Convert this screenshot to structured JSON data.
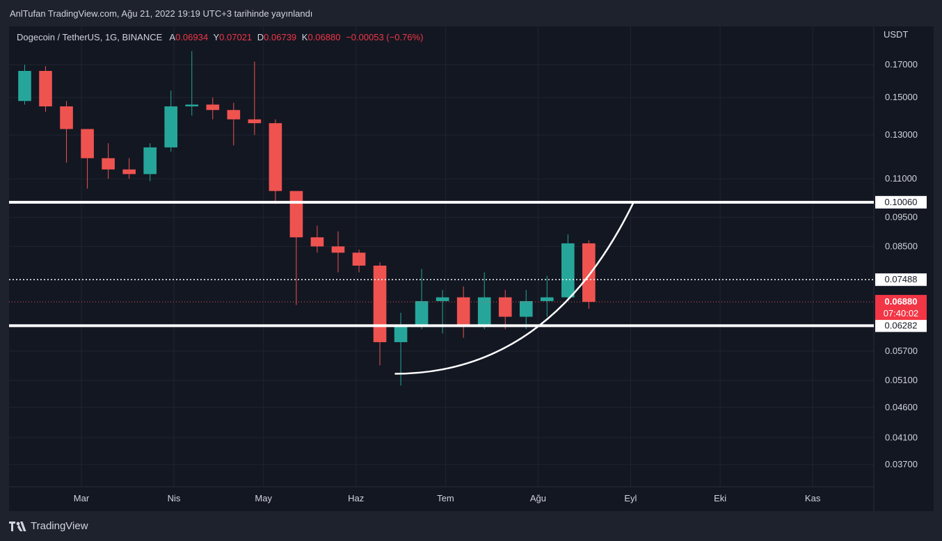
{
  "header": {
    "title": "AnlTufan TradingView.com, Ağu 21, 2022 19:19 UTC+3 tarihinde yayınlandı"
  },
  "legend": {
    "symbol": "Dogecoin / TetherUS, 1G, BINANCE",
    "open_label": "A",
    "open": "0.06934",
    "high_label": "Y",
    "high": "0.07021",
    "low_label": "D",
    "low": "0.06739",
    "close_label": "K",
    "close": "0.06880",
    "change": "−0.00053 (−0.76%)"
  },
  "footer": {
    "brand": "TradingView"
  },
  "chart_data": {
    "type": "candlestick",
    "price_axis_unit": "USDT",
    "y_scale": "log",
    "y_ticks": [
      "0.17000",
      "0.15000",
      "0.13000",
      "0.11000",
      "0.09500",
      "0.08500",
      "0.05700",
      "0.05100",
      "0.04600",
      "0.04100",
      "0.03700"
    ],
    "x_ticks": [
      "Mar",
      "Nis",
      "May",
      "Haz",
      "Tem",
      "Ağu",
      "Eyl",
      "Eki",
      "Kas"
    ],
    "price_labels": {
      "resistance": "0.10060",
      "dotted_level": "0.07488",
      "current": "0.06880",
      "countdown": "07:40:02",
      "support": "0.06282"
    },
    "series": [
      {
        "values": [
          [
            "2022-02-10",
            0.148,
            0.17,
            0.146,
            0.166
          ],
          [
            "2022-02-17",
            0.166,
            0.169,
            0.142,
            0.145
          ],
          [
            "2022-02-24",
            0.145,
            0.148,
            0.117,
            0.133
          ],
          [
            "2022-03-03",
            0.133,
            0.133,
            0.106,
            0.119
          ],
          [
            "2022-03-10",
            0.119,
            0.126,
            0.11,
            0.114
          ],
          [
            "2022-03-17",
            0.114,
            0.119,
            0.11,
            0.112
          ],
          [
            "2022-03-24",
            0.112,
            0.126,
            0.109,
            0.124
          ],
          [
            "2022-03-31",
            0.124,
            0.154,
            0.122,
            0.145
          ],
          [
            "2022-04-07",
            0.145,
            0.179,
            0.14,
            0.146
          ],
          [
            "2022-04-14",
            0.146,
            0.15,
            0.138,
            0.143
          ],
          [
            "2022-04-21",
            0.143,
            0.147,
            0.125,
            0.138
          ],
          [
            "2022-04-28",
            0.138,
            0.172,
            0.13,
            0.136
          ],
          [
            "2022-05-05",
            0.136,
            0.138,
            0.1,
            0.105
          ],
          [
            "2022-05-12",
            0.105,
            0.105,
            0.068,
            0.088
          ],
          [
            "2022-05-19",
            0.088,
            0.092,
            0.083,
            0.085
          ],
          [
            "2022-05-26",
            0.085,
            0.09,
            0.077,
            0.083
          ],
          [
            "2022-06-02",
            0.083,
            0.084,
            0.077,
            0.079
          ],
          [
            "2022-06-09",
            0.079,
            0.08,
            0.054,
            0.059
          ],
          [
            "2022-06-16",
            0.059,
            0.066,
            0.05,
            0.063
          ],
          [
            "2022-06-23",
            0.063,
            0.078,
            0.062,
            0.069
          ],
          [
            "2022-06-30",
            0.069,
            0.072,
            0.061,
            0.07
          ],
          [
            "2022-07-07",
            0.07,
            0.073,
            0.06,
            0.063
          ],
          [
            "2022-07-14",
            0.063,
            0.077,
            0.062,
            0.07
          ],
          [
            "2022-07-21",
            0.07,
            0.072,
            0.062,
            0.065
          ],
          [
            "2022-07-28",
            0.065,
            0.072,
            0.062,
            0.069
          ],
          [
            "2022-08-04",
            0.069,
            0.076,
            0.065,
            0.07
          ],
          [
            "2022-08-11",
            0.07,
            0.089,
            0.069,
            0.086
          ],
          [
            "2022-08-18",
            0.086,
            0.087,
            0.067,
            0.0688
          ]
        ]
      }
    ]
  }
}
